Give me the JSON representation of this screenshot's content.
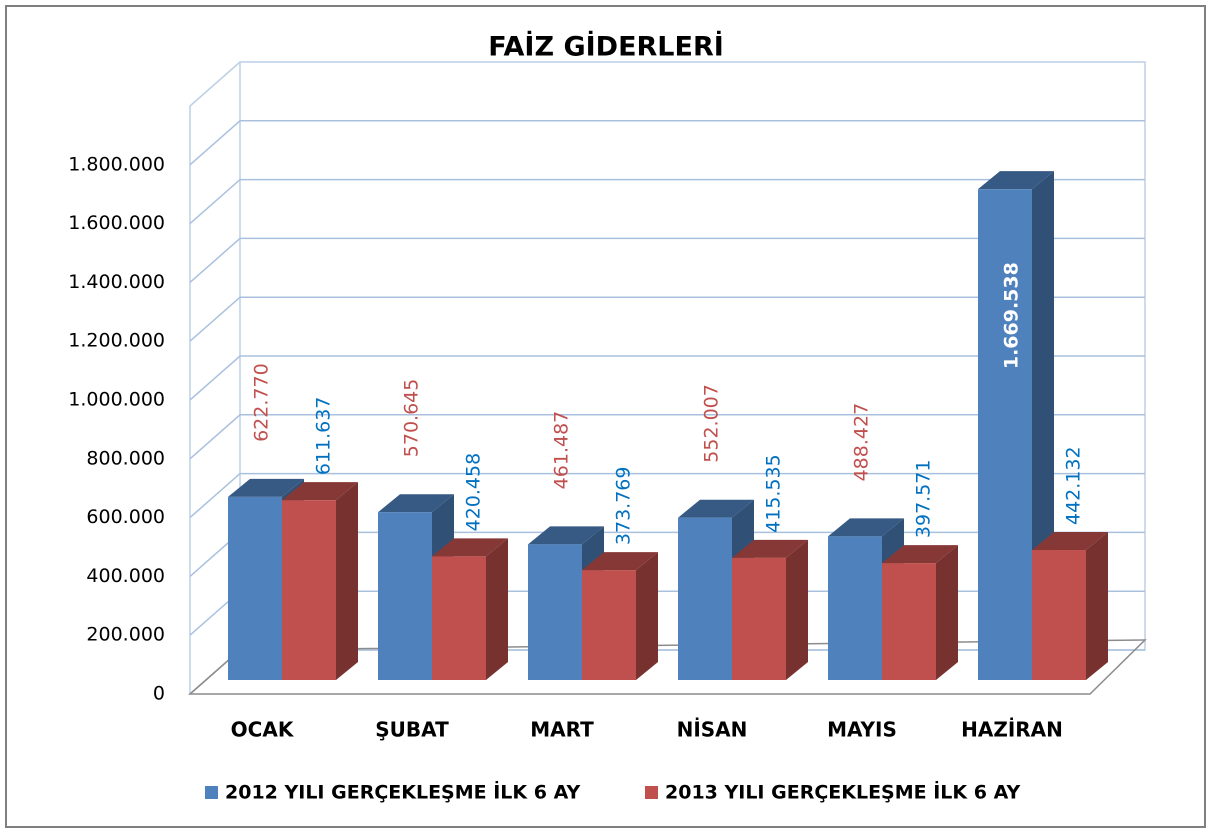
{
  "chart_data": {
    "type": "bar3d",
    "title": "FAİZ GİDERLERİ",
    "categories": [
      "OCAK",
      "ŞUBAT",
      "MART",
      "NİSAN",
      "MAYIS",
      "HAZİRAN"
    ],
    "series": [
      {
        "name": "2012 YILI GERÇEKLEŞME İLK 6 AY",
        "color": "#4f81bd",
        "label_color": "#c0504d",
        "values": [
          622770,
          570645,
          461487,
          552007,
          488427,
          1669538
        ],
        "value_labels": [
          "622.770",
          "570.645",
          "461.487",
          "552.007",
          "488.427",
          "1.669.538"
        ]
      },
      {
        "name": "2013 YILI GERÇEKLEŞME İLK 6 AY",
        "color": "#c0504d",
        "label_color": "#0070c0",
        "values": [
          611637,
          420458,
          373769,
          415535,
          397571,
          442132
        ],
        "value_labels": [
          "611.637",
          "420.458",
          "373.769",
          "415.535",
          "397.571",
          "442.132"
        ]
      }
    ],
    "ylim": [
      0,
      2000000
    ],
    "yticks": [
      0,
      {
        "value": 200000,
        "label": "200.000"
      },
      {
        "value": 400000,
        "label": "400.000"
      },
      {
        "value": 600000,
        "label": "600.000"
      },
      {
        "value": 800000,
        "label": "800.000"
      },
      {
        "value": 1000000,
        "label": "1.000.000"
      },
      {
        "value": 1200000,
        "label": "1.200.000"
      },
      {
        "value": 1400000,
        "label": "1.400.000"
      },
      {
        "value": 1600000,
        "label": "1.600.000"
      },
      {
        "value": 1800000,
        "label": "1.800.000"
      }
    ],
    "grid": true,
    "legend": "bottom"
  }
}
